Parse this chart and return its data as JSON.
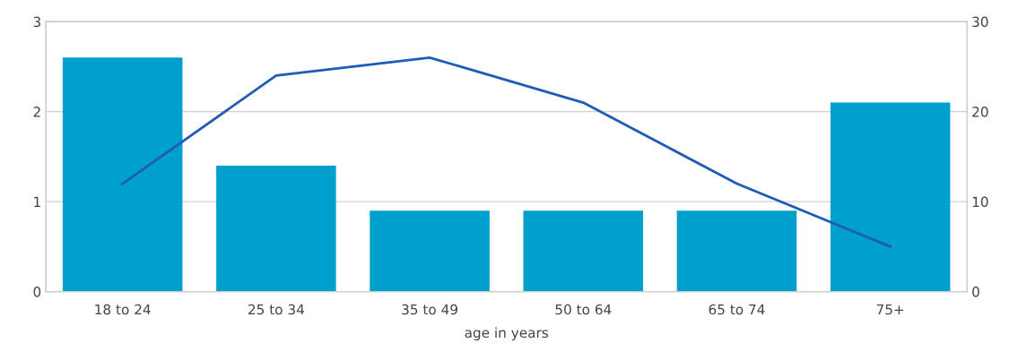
{
  "chart_data": {
    "type": "bar",
    "xlabel": "age in years",
    "categories": [
      "18 to 24",
      "25 to 34",
      "35 to 49",
      "50 to 64",
      "65 to 74",
      "75+"
    ],
    "series": [
      {
        "color": "#00a0cc",
        "values": [
          2.6,
          1.4,
          0.9,
          0.9,
          0.9,
          2.1
        ]
      },
      {
        "type": "line",
        "axis": "y2",
        "color": "#1f5cb8",
        "values": [
          12,
          24,
          26,
          21,
          12,
          5
        ]
      }
    ],
    "ylim": [
      0,
      3
    ],
    "yticks": [
      0,
      1,
      2,
      3
    ],
    "y2lim": [
      0,
      30
    ],
    "y2ticks": [
      0,
      10,
      20,
      30
    ],
    "grid": "y",
    "marker": "none",
    "line_style": "solid"
  }
}
